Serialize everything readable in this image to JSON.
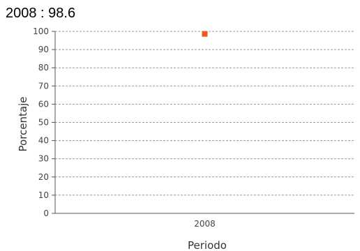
{
  "chart_data": {
    "type": "scatter",
    "title": "2008 : 98.6",
    "xlabel": "Periodo",
    "ylabel": "Porcentaje",
    "categories": [
      "2008"
    ],
    "values": [
      98.6
    ],
    "ylim": [
      0,
      100
    ],
    "yticks": [
      0,
      10,
      20,
      30,
      40,
      50,
      60,
      70,
      80,
      90,
      100
    ],
    "grid": true,
    "colors": {
      "marker": "#f05a1e",
      "grid": "#999999",
      "axis": "#555555"
    }
  }
}
